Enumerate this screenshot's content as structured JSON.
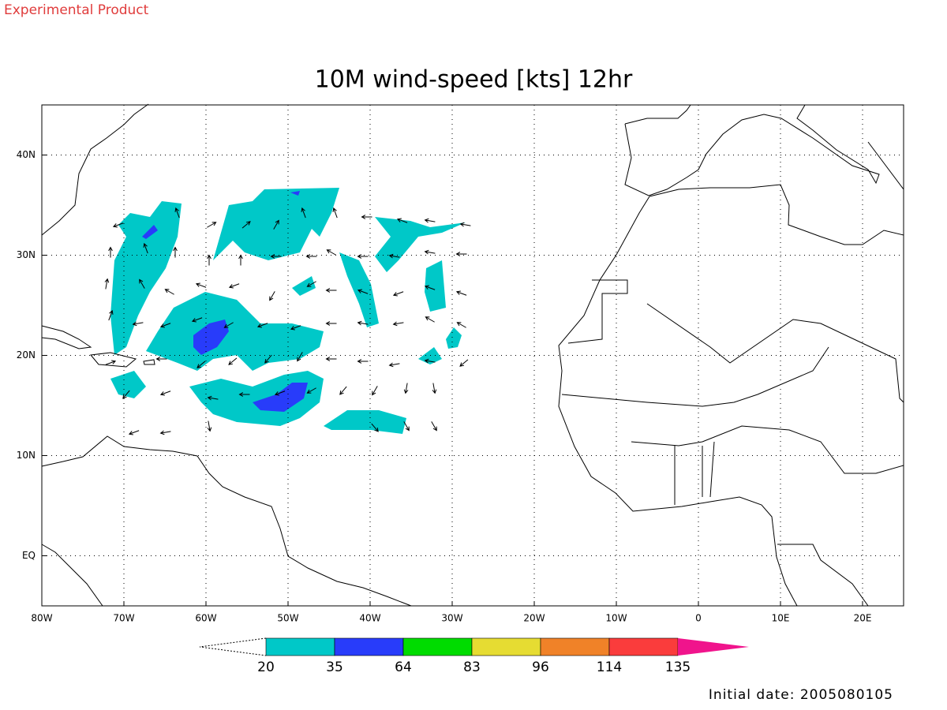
{
  "header": {
    "label": "Experimental Product"
  },
  "map": {
    "title": "10M wind-speed [kts] 12hr",
    "lon_range": [
      -80,
      25
    ],
    "lat_range": [
      -5,
      45
    ],
    "lon_ticks": [
      {
        "value": -80,
        "label": "80W"
      },
      {
        "value": -70,
        "label": "70W"
      },
      {
        "value": -60,
        "label": "60W"
      },
      {
        "value": -50,
        "label": "50W"
      },
      {
        "value": -40,
        "label": "40W"
      },
      {
        "value": -30,
        "label": "30W"
      },
      {
        "value": -20,
        "label": "20W"
      },
      {
        "value": -10,
        "label": "10W"
      },
      {
        "value": 0,
        "label": "0"
      },
      {
        "value": 10,
        "label": "10E"
      },
      {
        "value": 20,
        "label": "20E"
      }
    ],
    "lat_ticks": [
      {
        "value": 40,
        "label": "40N"
      },
      {
        "value": 30,
        "label": "30N"
      },
      {
        "value": 20,
        "label": "20N"
      },
      {
        "value": 10,
        "label": "10N"
      },
      {
        "value": 0,
        "label": "EQ"
      }
    ],
    "grid": true
  },
  "colorbar": {
    "levels": [
      20,
      35,
      64,
      83,
      96,
      114,
      135
    ],
    "colors": [
      "#00c8c8",
      "#283cfa",
      "#00dc00",
      "#e6dc32",
      "#f08228",
      "#fa3c3c",
      "#f0148c"
    ]
  },
  "footer": {
    "initial_date": "Initial date: 2005080105"
  }
}
